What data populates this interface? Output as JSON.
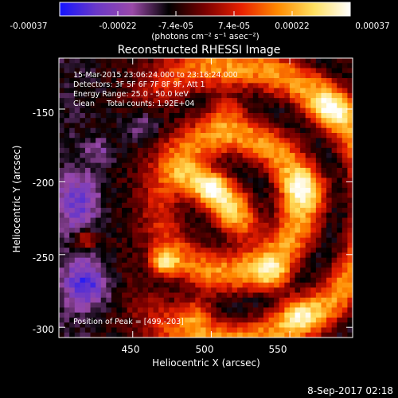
{
  "colorbar": {
    "tick_labels": [
      "-0.00037",
      "-0.00022",
      "-7.4e-05",
      "7.4e-05",
      "0.00022",
      "0.00037"
    ],
    "unit_label": "(photons cm⁻² s⁻¹ asec⁻²)",
    "colors": [
      "#1414ff",
      "#6a38c8",
      "#9a49a8",
      "#000000",
      "#7a0000",
      "#e82000",
      "#ff8a00",
      "#ffe060",
      "#ffffff"
    ]
  },
  "plot": {
    "title": "Reconstructed RHESSI Image",
    "xlabel": "Heliocentric X (arcsec)",
    "ylabel": "Heliocentric Y (arcsec)",
    "x_ticks": [
      "450",
      "500",
      "550"
    ],
    "y_ticks": [
      "-150",
      "-200",
      "-250",
      "-300"
    ]
  },
  "annotations": {
    "time_range": "15-Mar-2015 23:06:24.000 to 23:16:24.000",
    "detectors": "Detectors: 3F 5F 6F 7F 8F 9F, Att 1",
    "energy_range": "Energy Range: 25.0 - 50.0 keV",
    "clean": "Clean     Total counts: 1.92E+04",
    "peak": "Position of Peak = [499,-203]"
  },
  "footer": {
    "timestamp": "8-Sep-2017 02:18"
  },
  "chart_data": {
    "type": "heatmap",
    "title": "Reconstructed RHESSI Image",
    "xlabel": "Heliocentric X (arcsec)",
    "ylabel": "Heliocentric Y (arcsec)",
    "xlim": [
      403,
      590
    ],
    "ylim": [
      -307,
      -115
    ],
    "value_range": [
      -0.00037,
      0.00037
    ],
    "peak": [
      499,
      -203
    ],
    "x_tick_values": [
      450,
      500,
      550
    ],
    "y_tick_values": [
      -150,
      -200,
      -250,
      -300
    ],
    "blobs": [
      {
        "x": 499,
        "y": -203,
        "w": 12,
        "h": 11,
        "v": 1.0
      },
      {
        "x": 470,
        "y": -255,
        "w": 9,
        "h": 9,
        "v": 0.75
      },
      {
        "x": 485,
        "y": -195,
        "w": 14,
        "h": 14,
        "v": 0.55
      },
      {
        "x": 520,
        "y": -230,
        "w": 14,
        "h": 14,
        "v": 0.6
      },
      {
        "x": 540,
        "y": -265,
        "w": 12,
        "h": 12,
        "v": 0.6
      },
      {
        "x": 560,
        "y": -205,
        "w": 14,
        "h": 14,
        "v": 0.55
      },
      {
        "x": 575,
        "y": -150,
        "w": 14,
        "h": 14,
        "v": 0.5
      },
      {
        "x": 555,
        "y": -290,
        "w": 12,
        "h": 12,
        "v": 0.5
      },
      {
        "x": 490,
        "y": -290,
        "w": 12,
        "h": 12,
        "v": 0.5
      },
      {
        "x": 420,
        "y": -240,
        "w": 7,
        "h": 7,
        "v": 0.55
      },
      {
        "x": 510,
        "y": -150,
        "w": 12,
        "h": 12,
        "v": 0.45
      },
      {
        "x": 430,
        "y": -180,
        "w": 10,
        "h": 10,
        "v": -0.25
      },
      {
        "x": 420,
        "y": -270,
        "w": 14,
        "h": 16,
        "v": -0.6
      },
      {
        "x": 415,
        "y": -215,
        "w": 14,
        "h": 20,
        "v": -0.45
      },
      {
        "x": 455,
        "y": -160,
        "w": 12,
        "h": 12,
        "v": -0.3
      }
    ]
  }
}
